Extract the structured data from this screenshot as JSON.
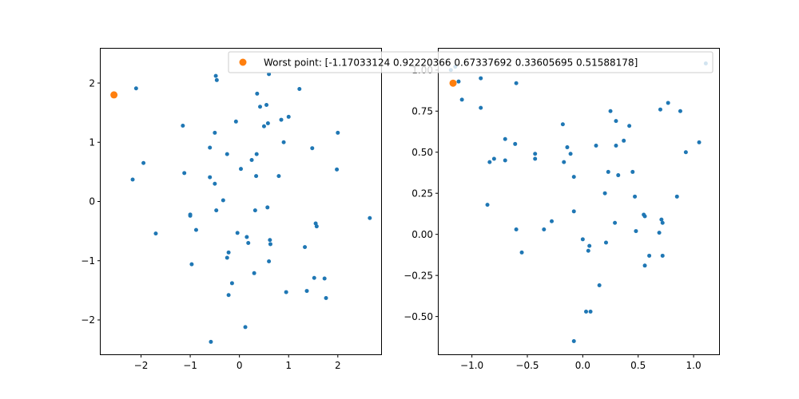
{
  "chart_data": [
    {
      "type": "scatter",
      "title": "",
      "xlabel": "",
      "ylabel": "",
      "xlim": [
        -2.82,
        2.88
      ],
      "ylim": [
        -2.58,
        2.58
      ],
      "xticks": [
        -2,
        -1,
        0,
        1,
        2
      ],
      "yticks": [
        -2,
        -1,
        0,
        1,
        2
      ],
      "xtick_labels": [
        "−2",
        "−1",
        "0",
        "1",
        "2"
      ],
      "ytick_labels": [
        "−2",
        "−1",
        "0",
        "1",
        "2"
      ],
      "grid": false,
      "series": [
        {
          "color": "#1f77b4",
          "marker": "small-circle",
          "points": [
            [
              -2.1,
              1.91
            ],
            [
              -1.95,
              0.65
            ],
            [
              -2.17,
              0.37
            ],
            [
              -1.7,
              -0.54
            ],
            [
              -1.15,
              1.28
            ],
            [
              -1.12,
              0.48
            ],
            [
              -1.0,
              -0.22
            ],
            [
              -1.0,
              -0.24
            ],
            [
              -0.97,
              -1.06
            ],
            [
              -0.88,
              -0.48
            ],
            [
              -0.6,
              0.91
            ],
            [
              -0.6,
              0.41
            ],
            [
              -0.58,
              -2.37
            ],
            [
              -0.5,
              1.16
            ],
            [
              -0.48,
              2.12
            ],
            [
              -0.46,
              2.05
            ],
            [
              -0.5,
              0.3
            ],
            [
              -0.47,
              -0.15
            ],
            [
              -0.33,
              0.02
            ],
            [
              -0.25,
              0.8
            ],
            [
              -0.25,
              -0.95
            ],
            [
              -0.22,
              -0.86
            ],
            [
              -0.22,
              -1.58
            ],
            [
              -0.15,
              -1.38
            ],
            [
              -0.07,
              1.35
            ],
            [
              -0.04,
              -0.53
            ],
            [
              0.03,
              0.55
            ],
            [
              0.12,
              -2.12
            ],
            [
              0.15,
              -0.6
            ],
            [
              0.18,
              -0.7
            ],
            [
              0.25,
              0.7
            ],
            [
              0.3,
              -1.21
            ],
            [
              0.32,
              -0.15
            ],
            [
              0.34,
              0.43
            ],
            [
              0.36,
              1.82
            ],
            [
              0.35,
              0.8
            ],
            [
              0.42,
              1.6
            ],
            [
              0.5,
              1.27
            ],
            [
              0.55,
              1.63
            ],
            [
              0.58,
              1.32
            ],
            [
              0.6,
              2.15
            ],
            [
              0.57,
              -0.1
            ],
            [
              0.6,
              -1.01
            ],
            [
              0.62,
              -0.65
            ],
            [
              0.63,
              -0.72
            ],
            [
              0.8,
              0.43
            ],
            [
              0.85,
              1.38
            ],
            [
              0.9,
              1.0
            ],
            [
              0.95,
              -1.53
            ],
            [
              1.0,
              1.43
            ],
            [
              1.22,
              1.9
            ],
            [
              1.33,
              -0.77
            ],
            [
              1.37,
              -1.51
            ],
            [
              1.48,
              0.9
            ],
            [
              1.52,
              -1.29
            ],
            [
              1.55,
              -0.37
            ],
            [
              1.57,
              -0.42
            ],
            [
              1.73,
              -1.3
            ],
            [
              1.76,
              -1.63
            ],
            [
              1.98,
              0.54
            ],
            [
              2.0,
              1.16
            ],
            [
              2.65,
              -0.28
            ]
          ]
        },
        {
          "color": "#ff7f0e",
          "marker": "circle",
          "points": [
            [
              -2.55,
              1.8
            ]
          ]
        }
      ]
    },
    {
      "type": "scatter",
      "title": "",
      "xlabel": "",
      "ylabel": "",
      "xlim": [
        -1.3,
        1.23
      ],
      "ylim": [
        -0.73,
        1.13
      ],
      "xticks": [
        -1.0,
        -0.5,
        0.0,
        0.5,
        1.0
      ],
      "yticks": [
        -0.5,
        -0.25,
        0.0,
        0.25,
        0.5,
        0.75,
        1.0
      ],
      "xtick_labels": [
        "−1.0",
        "−0.5",
        "0.0",
        "0.5",
        "1.0"
      ],
      "ytick_labels": [
        "−0.50",
        "−0.25",
        "0.00",
        "0.25",
        "0.50",
        "0.75",
        "1.00"
      ],
      "grid": false,
      "legend": {
        "placement": "upper-right",
        "label": "Worst point: [-1.17033124  0.92220366  0.67337692  0.33605695  0.51588178]",
        "color": "#ff7f0e"
      },
      "series": [
        {
          "color": "#1f77b4",
          "marker": "small-circle",
          "points": [
            [
              -1.19,
              1.0
            ],
            [
              -1.15,
              1.02
            ],
            [
              -1.12,
              0.93
            ],
            [
              -1.09,
              0.82
            ],
            [
              -0.92,
              0.95
            ],
            [
              -0.92,
              0.77
            ],
            [
              -0.86,
              0.18
            ],
            [
              -0.84,
              0.44
            ],
            [
              -0.8,
              0.46
            ],
            [
              -0.7,
              0.58
            ],
            [
              -0.7,
              0.45
            ],
            [
              -0.61,
              0.55
            ],
            [
              -0.6,
              0.92
            ],
            [
              -0.6,
              0.03
            ],
            [
              -0.55,
              -0.11
            ],
            [
              -0.43,
              0.49
            ],
            [
              -0.43,
              0.46
            ],
            [
              -0.35,
              0.03
            ],
            [
              -0.28,
              0.08
            ],
            [
              -0.18,
              0.67
            ],
            [
              -0.17,
              0.44
            ],
            [
              -0.14,
              0.53
            ],
            [
              -0.11,
              0.49
            ],
            [
              -0.08,
              0.35
            ],
            [
              -0.08,
              0.14
            ],
            [
              -0.08,
              -0.65
            ],
            [
              0.0,
              -0.03
            ],
            [
              0.03,
              -0.47
            ],
            [
              0.05,
              -0.1
            ],
            [
              0.06,
              -0.07
            ],
            [
              0.07,
              -0.47
            ],
            [
              0.12,
              0.54
            ],
            [
              0.15,
              -0.31
            ],
            [
              0.2,
              0.25
            ],
            [
              0.21,
              -0.05
            ],
            [
              0.23,
              0.38
            ],
            [
              0.25,
              0.75
            ],
            [
              0.29,
              0.07
            ],
            [
              0.3,
              0.54
            ],
            [
              0.3,
              0.69
            ],
            [
              0.32,
              0.36
            ],
            [
              0.37,
              0.57
            ],
            [
              0.42,
              0.66
            ],
            [
              0.45,
              0.38
            ],
            [
              0.47,
              0.23
            ],
            [
              0.48,
              0.02
            ],
            [
              0.55,
              0.12
            ],
            [
              0.56,
              0.11
            ],
            [
              0.56,
              -0.19
            ],
            [
              0.6,
              -0.13
            ],
            [
              0.69,
              0.01
            ],
            [
              0.7,
              0.76
            ],
            [
              0.71,
              0.09
            ],
            [
              0.72,
              0.07
            ],
            [
              0.72,
              -0.13
            ],
            [
              0.77,
              0.8
            ],
            [
              0.85,
              0.23
            ],
            [
              0.88,
              0.75
            ],
            [
              0.93,
              0.5
            ],
            [
              1.05,
              0.56
            ],
            [
              1.11,
              1.04
            ]
          ]
        },
        {
          "name": "Worst point: [-1.17033124  0.92220366  0.67337692  0.33605695  0.51588178]",
          "color": "#ff7f0e",
          "marker": "circle",
          "points": [
            [
              -1.17,
              0.92
            ]
          ]
        }
      ]
    }
  ]
}
